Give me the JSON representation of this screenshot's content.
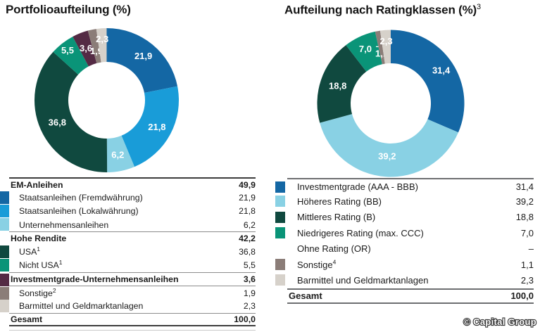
{
  "page": {
    "background": "#ffffff",
    "text_color": "#1a1a1a"
  },
  "palette": {
    "dark_blue": "#1467a4",
    "bright_blue": "#199cd8",
    "light_blue": "#89d1e4",
    "dark_teal": "#10493f",
    "teal": "#0a9478",
    "plum": "#542a44",
    "gray_brown": "#8b7d78",
    "light_gray": "#d6d1ca"
  },
  "left_panel": {
    "title": "Portfolioaufteilung (%)",
    "table": {
      "rows": [
        {
          "label": "EM-Anleihen",
          "value": "49,9",
          "bold": true,
          "rule_top": "dark"
        },
        {
          "label": "Staatsanleihen (Fremdwährung)",
          "value": "21,9",
          "indent": true,
          "swatch": "#1467a4"
        },
        {
          "label": "Staatsanleihen (Lokalwährung)",
          "value": "21,8",
          "indent": true,
          "swatch": "#199cd8"
        },
        {
          "label": "Unternehmensanleihen",
          "value": "6,2",
          "indent": true,
          "swatch": "#89d1e4"
        },
        {
          "label": "Hohe Rendite",
          "value": "42,2",
          "bold": true,
          "rule_top": "mid"
        },
        {
          "label": "USA",
          "sup": "1",
          "value": "36,8",
          "indent": true,
          "swatch": "#10493f"
        },
        {
          "label": "Nicht USA",
          "sup": "1",
          "value": "5,5",
          "indent": true,
          "swatch": "#0a9478"
        },
        {
          "label": "Investmentgrade-Unternehmensanleihen",
          "value": "3,6",
          "bold": true,
          "swatch": "#542a44",
          "rule_top": "mid"
        },
        {
          "label": "Sonstige",
          "sup": "2",
          "value": "1,9",
          "indent": true,
          "swatch": "#8b7d78",
          "rule_top": "mid"
        },
        {
          "label": "Barmittel und Geldmarktanlagen",
          "value": "2,3",
          "indent": true,
          "swatch": "#d6d1ca"
        },
        {
          "label": "Gesamt",
          "value": "100,0",
          "bold": true,
          "rule_top": "mid",
          "rule_bottom": "dark"
        }
      ]
    }
  },
  "right_panel": {
    "title": "Aufteilung nach Ratingklassen (%)",
    "title_sup": "3",
    "table": {
      "rows": [
        {
          "label": "Investmentgrade (AAA - BBB)",
          "value": "31,4",
          "indent": true,
          "swatch": "#1467a4",
          "rule_top": "mid2"
        },
        {
          "label": "Höheres Rating (BB)",
          "value": "39,2",
          "indent": true,
          "swatch": "#89d1e4"
        },
        {
          "label": "Mittleres Rating (B)",
          "value": "18,8",
          "indent": true,
          "swatch": "#10493f"
        },
        {
          "label": "Niedrigeres Rating (max. CCC)",
          "value": "7,0",
          "indent": true,
          "swatch": "#0a9478"
        },
        {
          "label": "Ohne Rating (OR)",
          "value": "–",
          "indent": true
        },
        {
          "label": "Sonstige",
          "sup": "4",
          "value": "1,1",
          "indent": true,
          "swatch": "#8b7d78"
        },
        {
          "label": "Barmittel und Geldmarktanlagen",
          "value": "2,3",
          "indent": true,
          "swatch": "#d6d1ca"
        },
        {
          "label": "Gesamt",
          "value": "100,0",
          "bold": true,
          "rule_top": "mid2",
          "rule_bottom": "mid2"
        }
      ]
    }
  },
  "logo": {
    "text": "© Capital Group"
  },
  "chart_data": [
    {
      "type": "pie",
      "donut": true,
      "title": "Portfolioaufteilung (%)",
      "unit": "%",
      "categories": [
        "Staatsanleihen (Fremdwährung)",
        "Staatsanleihen (Lokalwährung)",
        "Unternehmensanleihen",
        "Hohe Rendite USA",
        "Hohe Rendite Nicht USA",
        "Investmentgrade-Unternehmensanleihen",
        "Sonstige",
        "Barmittel und Geldmarktanlagen"
      ],
      "values": [
        21.9,
        21.8,
        6.2,
        36.8,
        5.5,
        3.6,
        1.9,
        2.3
      ],
      "slice_labels": [
        "21,9",
        "21,8",
        "6,2",
        "36,8",
        "5,5",
        "3,6",
        "1,9",
        "2,3"
      ],
      "colors": [
        "#1467a4",
        "#199cd8",
        "#89d1e4",
        "#10493f",
        "#0a9478",
        "#542a44",
        "#8b7d78",
        "#d6d1ca"
      ],
      "label_radius": [
        0.8,
        0.79,
        0.77,
        0.75,
        0.88,
        0.78,
        0.7,
        0.85
      ],
      "start_angle_deg": 0,
      "direction": "clockwise",
      "label_color": "#ffffff",
      "total": "100,0"
    },
    {
      "type": "pie",
      "donut": true,
      "title": "Aufteilung nach Ratingklassen (%)",
      "footnote_marker": "3",
      "unit": "%",
      "categories": [
        "Investmentgrade (AAA - BBB)",
        "Höheres Rating (BB)",
        "Mittleres Rating (B)",
        "Niedrigeres Rating (max. CCC)",
        "Ohne Rating (OR)",
        "Sonstige",
        "Barmittel und Geldmarktanlagen"
      ],
      "values": [
        31.4,
        39.2,
        18.8,
        7.0,
        0,
        1.1,
        2.3
      ],
      "slice_labels": [
        "31,4",
        "39,2",
        "18,8",
        "7,0",
        "–",
        "1,1",
        "2,3"
      ],
      "colors": [
        "#1467a4",
        "#89d1e4",
        "#10493f",
        "#0a9478",
        null,
        "#8b7d78",
        "#d6d1ca"
      ],
      "label_radius": [
        0.82,
        0.72,
        0.76,
        0.82,
        0.8,
        0.69,
        0.85
      ],
      "start_angle_deg": 0,
      "direction": "clockwise",
      "label_color": "#ffffff",
      "total": "100,0"
    }
  ]
}
